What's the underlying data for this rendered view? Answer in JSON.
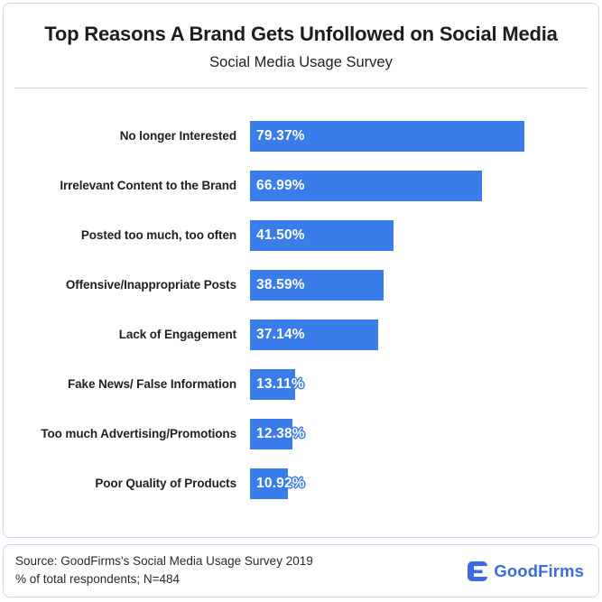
{
  "header": {
    "title": "Top Reasons A Brand Gets Unfollowed on Social Media",
    "subtitle": "Social Media Usage Survey"
  },
  "chart_data": {
    "type": "bar",
    "orientation": "horizontal",
    "title": "Top Reasons A Brand Gets Unfollowed on Social Media",
    "subtitle": "Social Media Usage Survey",
    "categories": [
      "No longer Interested",
      "Irrelevant Content to the Brand",
      "Posted too much, too often",
      "Offensive/Inappropriate Posts",
      "Lack of Engagement",
      "Fake News/ False Information",
      "Too much Advertising/Promotions",
      "Poor Quality of Products"
    ],
    "values": [
      79.37,
      66.99,
      41.5,
      38.59,
      37.14,
      13.11,
      12.38,
      10.92
    ],
    "value_labels": [
      "79.37%",
      "66.99%",
      "41.50%",
      "38.59%",
      "37.14%",
      "13.11%",
      "12.38%",
      "10.92%"
    ],
    "xlabel": "",
    "ylabel": "",
    "xlim": [
      0,
      100
    ],
    "grid": false,
    "legend": false,
    "bar_color": "#3b7ceb",
    "value_label_color": "#ffffff"
  },
  "footer": {
    "source_line": "Source: GoodFirms's Social Media Usage Survey 2019",
    "respondents_line": "% of total respondents; N=484",
    "logo": {
      "text": "GoodFirms",
      "color": "#3e6ae1",
      "icon": "goodfirms-logo-icon"
    }
  }
}
